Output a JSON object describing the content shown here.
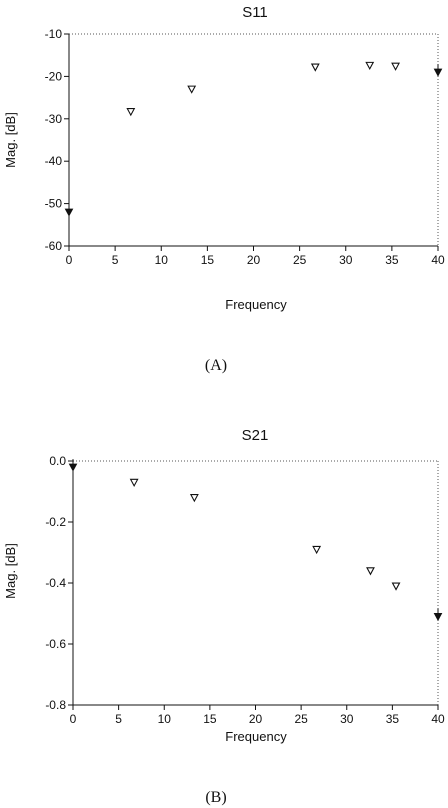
{
  "figure": {
    "caption_a": "(A)",
    "caption_b": "(B)"
  },
  "chart_data": [
    {
      "type": "scatter",
      "title": "S11",
      "xlabel": "Frequency",
      "ylabel": "Mag. [dB]",
      "xlim": [
        0,
        40
      ],
      "ylim": [
        -60,
        -10
      ],
      "xticks": [
        0,
        5,
        10,
        15,
        20,
        25,
        30,
        35,
        40
      ],
      "yticks": [
        -10,
        -20,
        -30,
        -40,
        -50,
        -60
      ],
      "xtick_labels": [
        "0",
        "5",
        "10",
        "15",
        "20",
        "25",
        "30",
        "35",
        "40"
      ],
      "ytick_labels": [
        "-10",
        "-20",
        "-30",
        "-40",
        "-50",
        "-60"
      ],
      "grid": false,
      "series": [
        {
          "x": [
            0,
            6.7,
            13.3,
            26.7,
            32.6,
            35.4,
            40
          ],
          "y": [
            -52,
            -28.3,
            -23,
            -17.8,
            -17.4,
            -17.6,
            -19
          ]
        }
      ],
      "endpoint_markers": [
        0,
        6
      ]
    },
    {
      "type": "scatter",
      "title": "S21",
      "xlabel": "Frequency",
      "ylabel": "Mag. [dB]",
      "xlim": [
        0,
        40
      ],
      "ylim": [
        -0.8,
        0.0
      ],
      "xticks": [
        0,
        5,
        10,
        15,
        20,
        25,
        30,
        35,
        40
      ],
      "yticks": [
        0.0,
        -0.2,
        -0.4,
        -0.6,
        -0.8
      ],
      "xtick_labels": [
        "0",
        "5",
        "10",
        "15",
        "20",
        "25",
        "30",
        "35",
        "40"
      ],
      "ytick_labels": [
        "0.0",
        "-0.2",
        "-0.4",
        "-0.6",
        "-0.8"
      ],
      "grid": false,
      "series": [
        {
          "x": [
            0,
            6.7,
            13.3,
            26.7,
            32.6,
            35.4,
            40
          ],
          "y": [
            -0.02,
            -0.07,
            -0.12,
            -0.29,
            -0.36,
            -0.41,
            -0.51
          ]
        }
      ],
      "endpoint_markers": [
        0,
        6
      ]
    }
  ]
}
